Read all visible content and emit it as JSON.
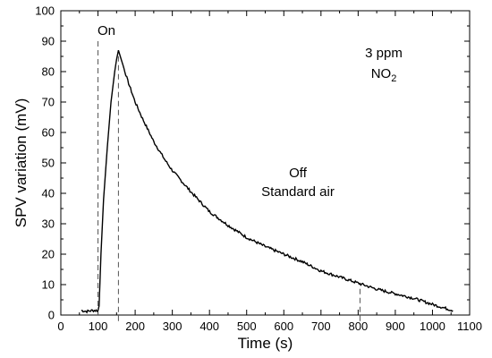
{
  "chart_data": {
    "type": "line",
    "xlabel": "Time (s)",
    "ylabel": "SPV variation (mV)",
    "xlim": [
      0,
      1100
    ],
    "ylim": [
      0,
      100
    ],
    "xticks": [
      0,
      100,
      200,
      300,
      400,
      500,
      600,
      700,
      800,
      900,
      1000,
      1100
    ],
    "yticks": [
      0,
      10,
      20,
      30,
      40,
      50,
      60,
      70,
      80,
      90,
      100
    ],
    "grid": false,
    "legend": "none",
    "line_color": "#000000",
    "marker_line_color": "#555555",
    "series": [
      {
        "x": [
          55,
          70,
          85,
          100,
          103,
          108,
          115,
          125,
          135,
          145,
          150,
          155,
          160,
          170,
          180,
          200,
          220,
          250,
          280,
          300,
          350,
          400,
          450,
          500,
          550,
          600,
          650,
          700,
          750,
          800,
          850,
          900,
          950,
          1000,
          1055
        ],
        "y": [
          1.5,
          1.2,
          1.5,
          1.5,
          3,
          20,
          38,
          55,
          70,
          80,
          84,
          87,
          85,
          81,
          77,
          70,
          64.5,
          57,
          51,
          47.5,
          40.5,
          34,
          29.5,
          25.5,
          22.5,
          20,
          17.5,
          14.5,
          12.5,
          10.5,
          8.5,
          7,
          5.5,
          3.5,
          1.5
        ]
      }
    ],
    "markers": [
      {
        "x": 100,
        "y_from": 0,
        "y_to": 90
      },
      {
        "x": 155,
        "y_from": -2,
        "y_to": 85
      },
      {
        "x": 805,
        "y_from": -2,
        "y_to": 10
      }
    ],
    "annotations": {
      "on": "On",
      "off_line1": "Off",
      "off_line2": "Standard air",
      "conc_line1": "3 ppm",
      "conc_base": "NO",
      "conc_sub": "2"
    }
  }
}
